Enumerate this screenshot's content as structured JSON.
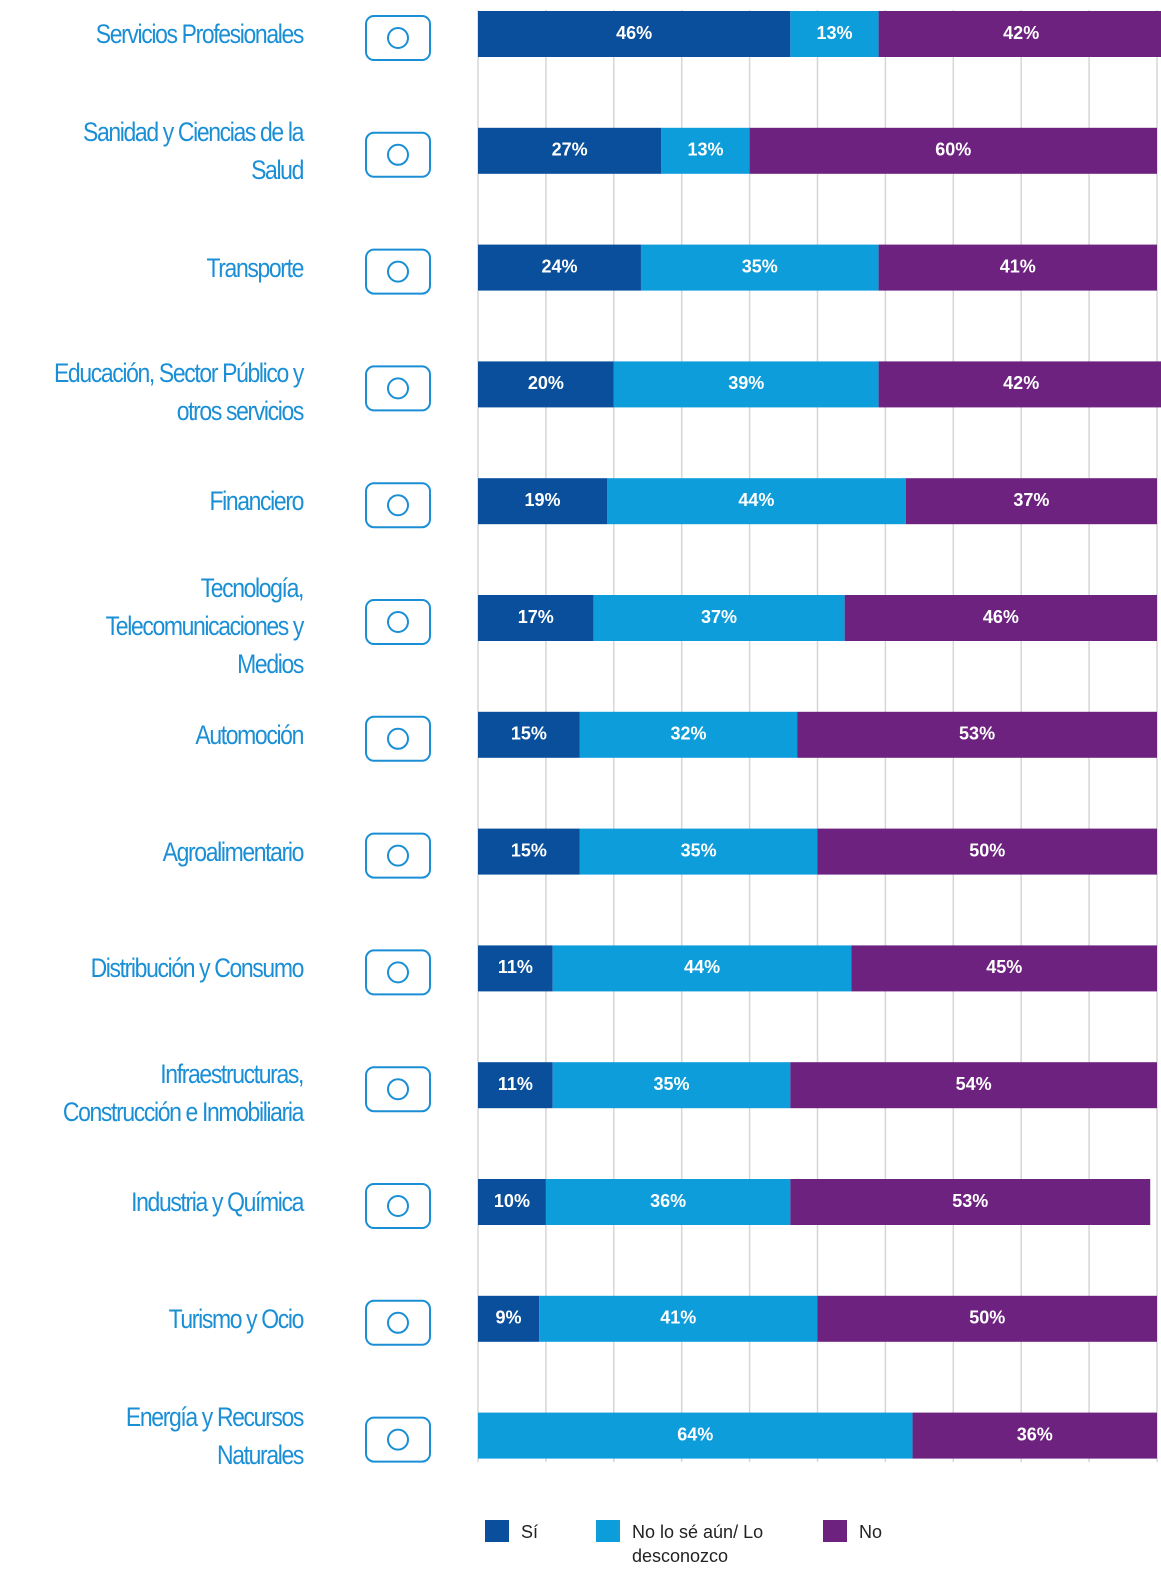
{
  "chart_data": {
    "type": "stacked_barh",
    "categories": [
      "Servicios Profesionales",
      "Sanidad y Ciencias de la Salud",
      "Transporte",
      "Educación, Sector Público y otros servicios",
      "Financiero",
      "Tecnología, Telecomunicaciones y Medios",
      "Automoción",
      "Agroalimentario",
      "Distribución y Consumo",
      "Infraestructuras, Construcción e Inmobiliaria",
      "Industria y Química",
      "Turismo y Ocio",
      "Energía y Recursos Naturales"
    ],
    "series": [
      {
        "name": "Sí",
        "color": "#0a4f9c",
        "values": [
          46,
          27,
          24,
          20,
          19,
          17,
          15,
          15,
          11,
          11,
          10,
          9,
          0
        ],
        "value_labels": [
          "46%",
          "27%",
          "24%",
          "20%",
          "19%",
          "17%",
          "15%",
          "15%",
          "11%",
          "11%",
          "10%",
          "9%",
          null
        ]
      },
      {
        "name": "No lo sé aún/ Lo desconozco",
        "color": "#0d9ddb",
        "values": [
          13,
          13,
          35,
          39,
          44,
          37,
          32,
          35,
          44,
          35,
          36,
          41,
          64
        ],
        "value_labels": [
          "13%",
          "13%",
          "35%",
          "39%",
          "44%",
          "37%",
          "32%",
          "35%",
          "44%",
          "35%",
          "36%",
          "41%",
          "64%"
        ]
      },
      {
        "name": "No",
        "color": "#6d2280",
        "values": [
          42,
          60,
          41,
          42,
          37,
          46,
          53,
          50,
          45,
          54,
          53,
          50,
          36
        ],
        "value_labels": [
          "42%",
          "60%",
          "41%",
          "42%",
          "37%",
          "46%",
          "53%",
          "50%",
          "45%",
          "54%",
          "53%",
          "50%",
          "36%"
        ]
      }
    ],
    "xlim": [
      0,
      100
    ],
    "xticks": [
      0,
      10,
      20,
      30,
      40,
      50,
      60,
      70,
      80,
      90,
      100
    ],
    "grid": true
  }
}
